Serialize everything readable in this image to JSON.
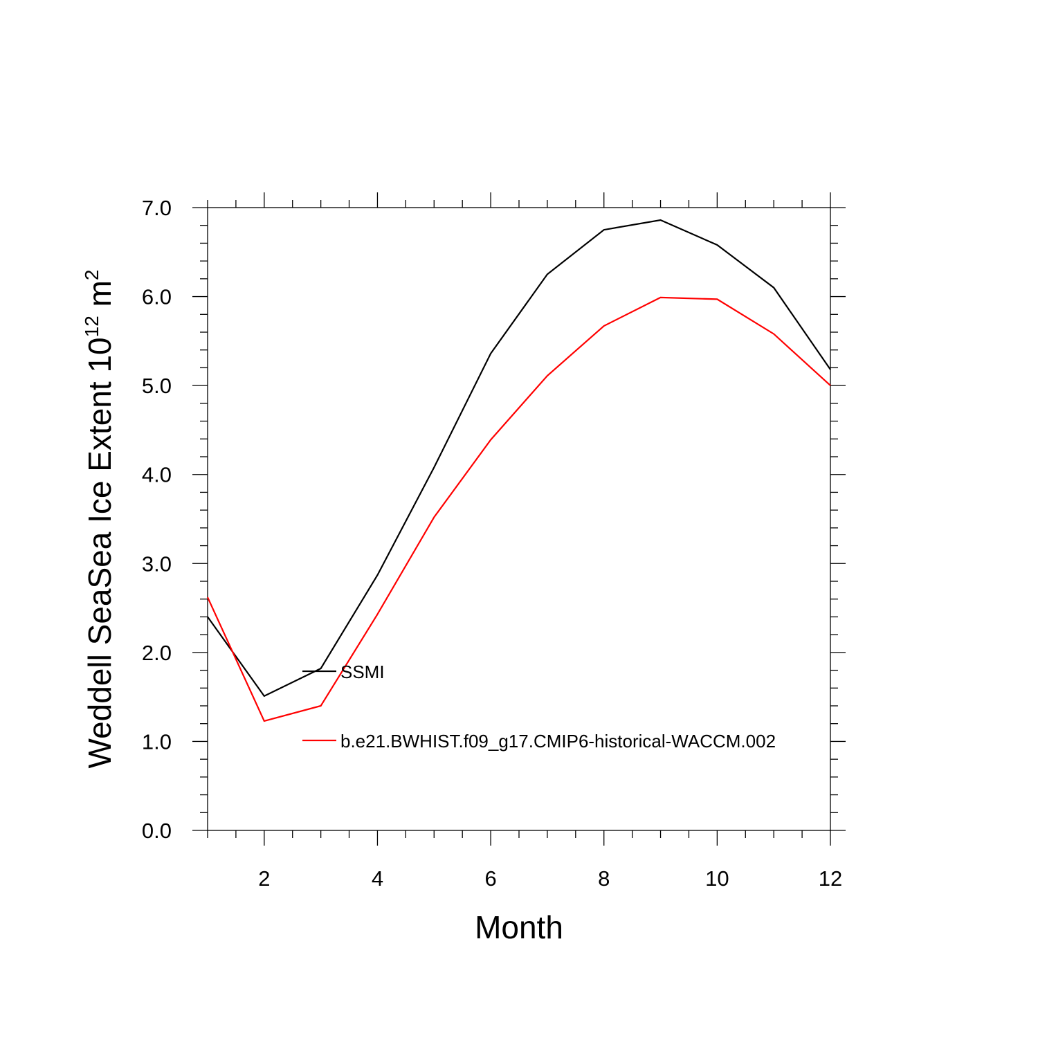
{
  "chart_data": {
    "type": "line",
    "title": "",
    "xlabel": "Month",
    "ylabel": {
      "text": "Weddell SeaSea Ice Extent 10",
      "superscript": "12",
      "unit": "m",
      "unit_superscript": "2"
    },
    "xlim": [
      1,
      12
    ],
    "ylim": [
      0,
      7
    ],
    "x_ticks": [
      2,
      4,
      6,
      8,
      10,
      12
    ],
    "x_tick_labels": [
      "2",
      "4",
      "6",
      "8",
      "10",
      "12"
    ],
    "y_ticks": [
      0,
      1,
      2,
      3,
      4,
      5,
      6,
      7
    ],
    "y_tick_labels": [
      "0.0",
      "1.0",
      "2.0",
      "3.0",
      "4.0",
      "5.0",
      "6.0",
      "7.0"
    ],
    "grid": false,
    "legend_position": "inside, lower-left",
    "x": [
      1,
      2,
      3,
      4,
      5,
      6,
      7,
      8,
      9,
      10,
      11,
      12
    ],
    "series": [
      {
        "name": "SSMI",
        "color": "#000000",
        "values": [
          2.4,
          1.51,
          1.82,
          2.87,
          4.08,
          5.36,
          6.25,
          6.75,
          6.86,
          6.58,
          6.1,
          5.18
        ]
      },
      {
        "name": "b.e21.BWHIST.f09_g17.CMIP6-historical-WACCM.002",
        "color": "#ff0000",
        "values": [
          2.62,
          1.23,
          1.4,
          2.43,
          3.52,
          4.39,
          5.11,
          5.67,
          5.99,
          5.97,
          5.58,
          5.0
        ]
      }
    ]
  }
}
